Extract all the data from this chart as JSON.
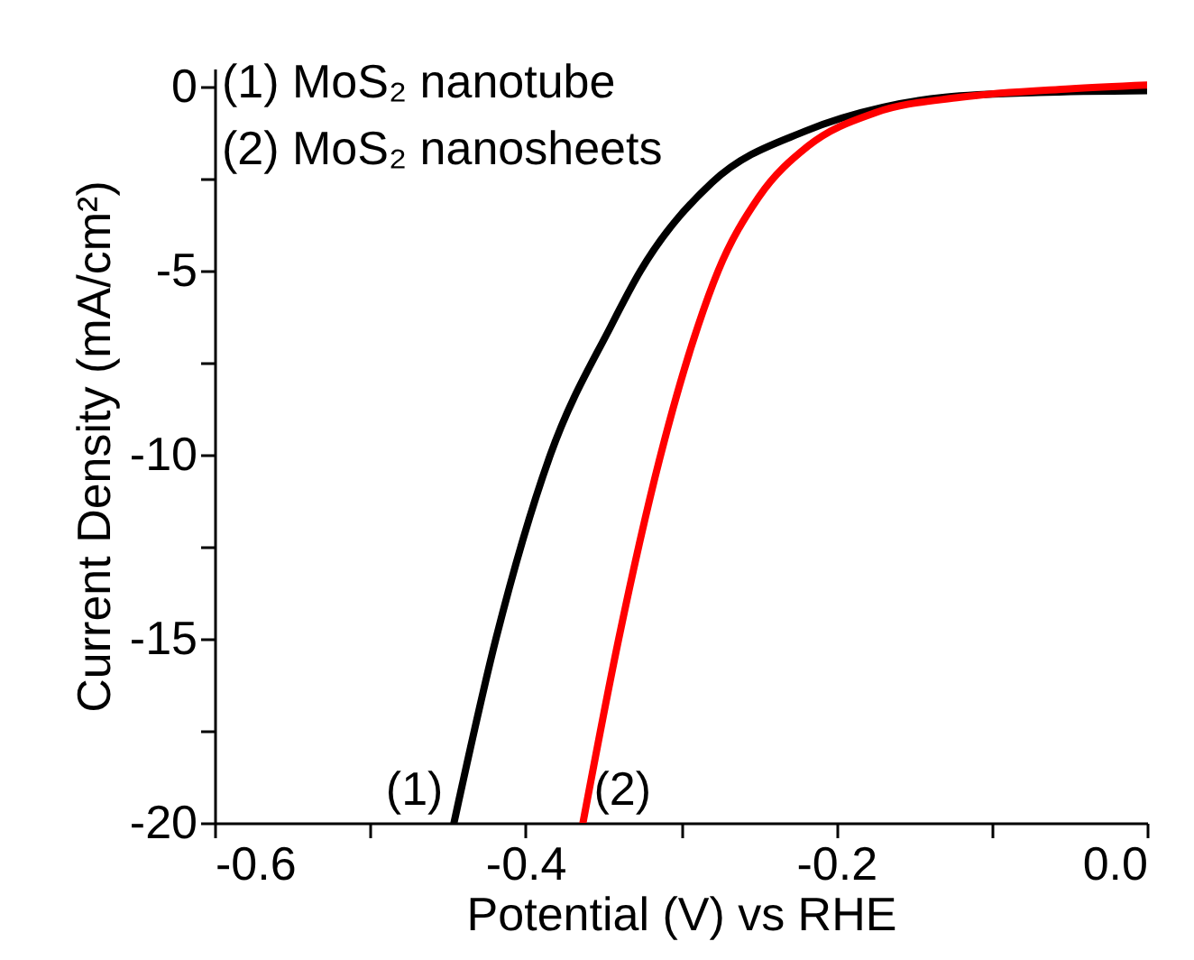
{
  "chart_data": {
    "type": "line",
    "xlabel": "Potential (V) vs RHE",
    "ylabel": "Current Density (mA/cm²)",
    "annotations": [
      "(1) MoS₂ nanotube",
      "(2) MoS₂ nanosheets"
    ],
    "xlim": [
      -0.6,
      0
    ],
    "xticks": [
      {
        "value": -0.6,
        "label": "-0.6"
      },
      {
        "value": -0.5,
        "label": null
      },
      {
        "value": -0.4,
        "label": "-0.4"
      },
      {
        "value": -0.3,
        "label": null
      },
      {
        "value": -0.2,
        "label": "-0.2"
      },
      {
        "value": -0.1,
        "label": null
      },
      {
        "value": 0,
        "label": "0.0"
      }
    ],
    "ylim": [
      -20,
      0.5
    ],
    "yticks": [
      -20,
      {
        "value": -17.5,
        "label": null
      },
      -15,
      {
        "value": -12.5,
        "label": null
      },
      -10,
      {
        "value": -7.5,
        "label": null
      },
      -5,
      {
        "value": -2.5,
        "label": null
      },
      0
    ],
    "grid": false,
    "series": [
      {
        "name": "(1)",
        "color": "#000000",
        "x": [
          -0.446,
          -0.419,
          -0.384,
          -0.345,
          -0.326,
          -0.28,
          -0.22,
          -0.17,
          -0.13,
          -0.07,
          0
        ],
        "values": [
          -20,
          -15,
          -10,
          -6.5,
          -5,
          -2.6,
          -1.2,
          -0.55,
          -0.28,
          -0.15,
          -0.1
        ]
      },
      {
        "name": "(2)",
        "color": "#ff0000",
        "x": [
          -0.363,
          -0.34,
          -0.313,
          -0.289,
          -0.276,
          -0.25,
          -0.218,
          -0.175,
          -0.12,
          -0.05,
          0
        ],
        "values": [
          -20,
          -15,
          -10,
          -6.5,
          -5,
          -3,
          -1.6,
          -0.7,
          -0.28,
          -0.05,
          0.05
        ]
      }
    ]
  }
}
